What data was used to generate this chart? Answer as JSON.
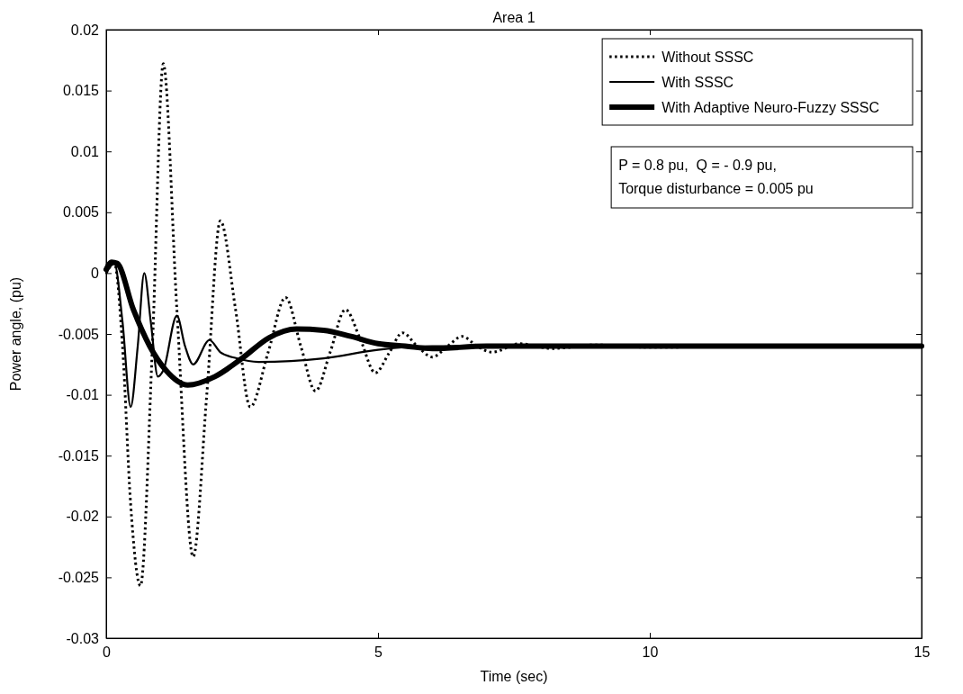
{
  "chart_data": {
    "type": "line",
    "title": "Area 1",
    "xlabel": "Time (sec)",
    "ylabel": "Power angle, (pu)",
    "xlim": [
      0,
      15
    ],
    "xticks": [
      0,
      5,
      10,
      15
    ],
    "ylim": [
      -0.03,
      0.02
    ],
    "yticks": [
      -0.03,
      -0.025,
      -0.02,
      -0.015,
      -0.01,
      -0.005,
      0,
      0.005,
      0.01,
      0.015,
      0.02
    ],
    "grid": false,
    "legend": "top right",
    "annotations": [
      "P = 0.8 pu,  Q = - 0.9 pu,",
      "Torque disturbance = 0.005 pu"
    ],
    "series": [
      {
        "name": "Without SSSC",
        "color": "#000000",
        "line_style": "dotted",
        "x": [
          0,
          0.15,
          0.3,
          0.45,
          0.63,
          0.85,
          1.05,
          1.3,
          1.6,
          1.85,
          2.1,
          2.38,
          2.65,
          2.98,
          3.3,
          3.58,
          3.85,
          4.12,
          4.4,
          4.68,
          4.95,
          5.2,
          5.45,
          5.72,
          6.0,
          6.28,
          6.55,
          6.82,
          7.1,
          7.6,
          8.2,
          9,
          10,
          12,
          15
        ],
        "values": [
          0,
          0.0008,
          -0.006,
          -0.019,
          -0.0257,
          -0.006,
          0.0172,
          -0.003,
          -0.0233,
          -0.01,
          0.0043,
          -0.003,
          -0.011,
          -0.0065,
          -0.002,
          -0.006,
          -0.0097,
          -0.0065,
          -0.003,
          -0.0055,
          -0.0082,
          -0.0066,
          -0.0049,
          -0.006,
          -0.0069,
          -0.006,
          -0.0052,
          -0.006,
          -0.0065,
          -0.0058,
          -0.0062,
          -0.0059,
          -0.0061,
          -0.006,
          -0.006
        ]
      },
      {
        "name": "With SSSC",
        "color": "#000000",
        "line_style": "solid",
        "x": [
          0,
          0.15,
          0.3,
          0.45,
          0.58,
          0.7,
          0.82,
          0.95,
          1.05,
          1.3,
          1.45,
          1.6,
          1.9,
          2.1,
          2.4,
          2.8,
          4,
          5,
          6,
          8,
          15
        ],
        "values": [
          0,
          0.0008,
          -0.004,
          -0.011,
          -0.006,
          0,
          -0.004,
          -0.0085,
          -0.008,
          -0.0035,
          -0.006,
          -0.0075,
          -0.0055,
          -0.0065,
          -0.007,
          -0.0073,
          -0.007,
          -0.0063,
          -0.006,
          -0.006,
          -0.006
        ]
      },
      {
        "name": "With Adaptive Neuro-Fuzzy SSSC",
        "color": "#000000",
        "line_style": "solid",
        "x": [
          0,
          0.1,
          0.2,
          0.5,
          0.8,
          1.1,
          1.5,
          2,
          2.5,
          3,
          3.5,
          4,
          4.5,
          5,
          5.5,
          6,
          7,
          15
        ],
        "values": [
          0.0003,
          0.0009,
          0.0008,
          -0.003,
          -0.006,
          -0.008,
          -0.0092,
          -0.0085,
          -0.007,
          -0.0053,
          -0.0046,
          -0.0047,
          -0.0052,
          -0.0058,
          -0.006,
          -0.0062,
          -0.006,
          -0.006
        ]
      }
    ]
  }
}
